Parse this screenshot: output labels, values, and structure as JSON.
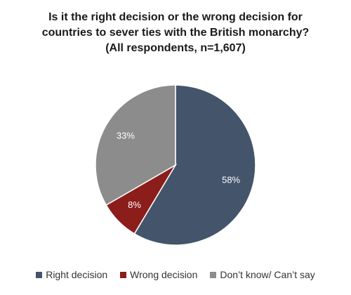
{
  "chart_data": {
    "type": "pie",
    "title": [
      "Is it the right decision or the wrong decision for",
      "countries to sever ties with the British monarchy?",
      "(All respondents, n=1,607)"
    ],
    "slices": [
      {
        "name": "Right decision",
        "value": 58,
        "label": "58%",
        "color": "#44546a"
      },
      {
        "name": "Wrong decision",
        "value": 8,
        "label": "8%",
        "color": "#8b1d1b"
      },
      {
        "name": "Don’t know/ Can’t say",
        "value": 33,
        "label": "33%",
        "color": "#8c8c8c"
      }
    ],
    "start_angle": "12 o'clock",
    "direction": "clockwise",
    "legend_position": "bottom"
  }
}
